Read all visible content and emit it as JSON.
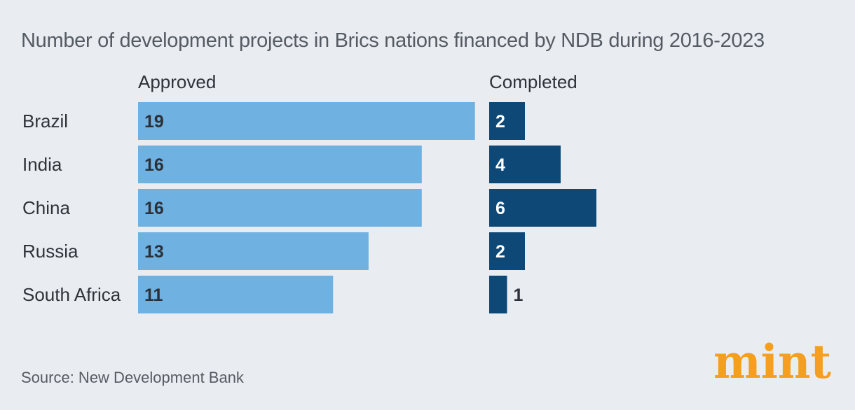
{
  "title": "Number of development projects in Brics nations financed by NDB during 2016-2023",
  "source": "Source: New Development Bank",
  "logo_text": "mint",
  "colors": {
    "background": "#e9edf2",
    "approved": "#6fb1e1",
    "completed": "#0d4876",
    "logo": "#f59e1f",
    "text": "#333840"
  },
  "chart_data": {
    "type": "bar",
    "orientation": "horizontal",
    "categories": [
      "Brazil",
      "India",
      "China",
      "Russia",
      "South Africa"
    ],
    "series": [
      {
        "name": "Approved",
        "values": [
          19,
          16,
          16,
          13,
          11
        ]
      },
      {
        "name": "Completed",
        "values": [
          2,
          4,
          6,
          2,
          1
        ]
      }
    ],
    "title": "Number of development projects in Brics nations financed by NDB during 2016-2023",
    "grid": false,
    "legend": "column headers"
  }
}
